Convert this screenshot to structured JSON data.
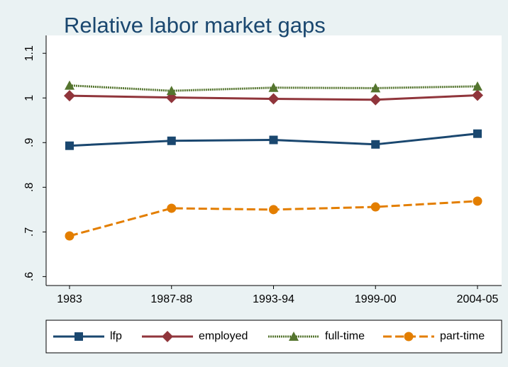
{
  "chart_data": {
    "type": "line",
    "title": "Relative labor market gaps",
    "categories": [
      "1983",
      "1987-88",
      "1993-94",
      "1999-00",
      "2004-05"
    ],
    "series": [
      {
        "name": "lfp",
        "color": "#1a476f",
        "marker": "square",
        "dash": "solid",
        "values": [
          0.893,
          0.904,
          0.906,
          0.896,
          0.92
        ]
      },
      {
        "name": "employed",
        "color": "#90353b",
        "marker": "diamond",
        "dash": "solid",
        "values": [
          1.005,
          1.001,
          0.998,
          0.996,
          1.006
        ]
      },
      {
        "name": "full-time",
        "color": "#55752f",
        "marker": "triangle",
        "dash": "dotted",
        "values": [
          1.028,
          1.016,
          1.023,
          1.022,
          1.026
        ]
      },
      {
        "name": "part-time",
        "color": "#e37e00",
        "marker": "circle",
        "dash": "dashed",
        "values": [
          0.691,
          0.753,
          0.75,
          0.756,
          0.769
        ]
      }
    ],
    "ylim": [
      0.58,
      1.14
    ],
    "yticks": [
      {
        "value": 0.6,
        "label": ".6"
      },
      {
        "value": 0.7,
        "label": ".7"
      },
      {
        "value": 0.8,
        "label": ".8"
      },
      {
        "value": 0.9,
        "label": ".9"
      },
      1,
      1.1
    ],
    "grid": false,
    "legend": "bottom"
  }
}
